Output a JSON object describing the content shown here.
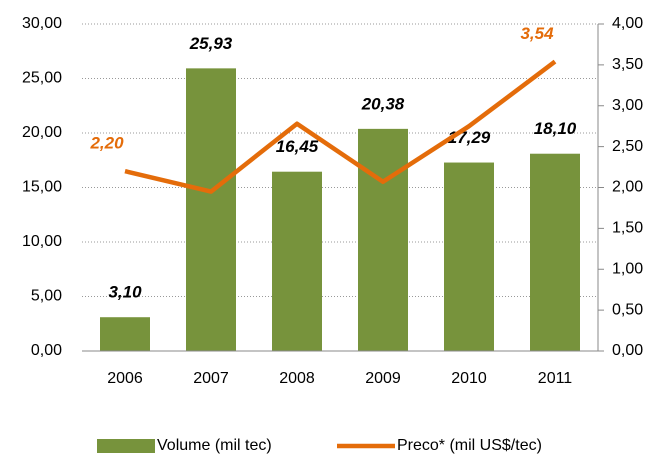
{
  "chart_data": {
    "type": "bar-line",
    "categories": [
      "2006",
      "2007",
      "2008",
      "2009",
      "2010",
      "2011"
    ],
    "series": [
      {
        "name": "Volume (mil tec)",
        "color": "#77933c",
        "type": "bar",
        "values": [
          3.1,
          25.93,
          16.45,
          20.38,
          17.29,
          18.1
        ],
        "value_labels": [
          "3,10",
          "25,93",
          "16,45",
          "20,38",
          "17,29",
          "18,10"
        ]
      },
      {
        "name": "Preco* (mil US$/tec)",
        "color": "#e46c0a",
        "type": "line",
        "axis": "y2",
        "values": [
          2.2,
          1.95,
          2.78,
          2.07,
          2.75,
          3.54
        ],
        "value_labels": [
          "2,20",
          null,
          null,
          null,
          null,
          "3,54"
        ]
      }
    ],
    "ylim": [
      0,
      30
    ],
    "yticks": [
      {
        "value": 0,
        "label": "0,00"
      },
      {
        "value": 5,
        "label": "5,00"
      },
      {
        "value": 10,
        "label": "10,00"
      },
      {
        "value": 15,
        "label": "15,00"
      },
      {
        "value": 20,
        "label": "20,00"
      },
      {
        "value": 25,
        "label": "25,00"
      },
      {
        "value": 30,
        "label": "30,00"
      }
    ],
    "y2lim": [
      0,
      4
    ],
    "y2ticks": [
      {
        "value": 0,
        "label": "0,00"
      },
      {
        "value": 0.5,
        "label": "0,50"
      },
      {
        "value": 1,
        "label": "1,00"
      },
      {
        "value": 1.5,
        "label": "1,50"
      },
      {
        "value": 2,
        "label": "2,00"
      },
      {
        "value": 2.5,
        "label": "2,50"
      },
      {
        "value": 3,
        "label": "3,00"
      },
      {
        "value": 3.5,
        "label": "3,50"
      },
      {
        "value": 4,
        "label": "4,00"
      }
    ],
    "grid": true,
    "legend": "bottom"
  }
}
